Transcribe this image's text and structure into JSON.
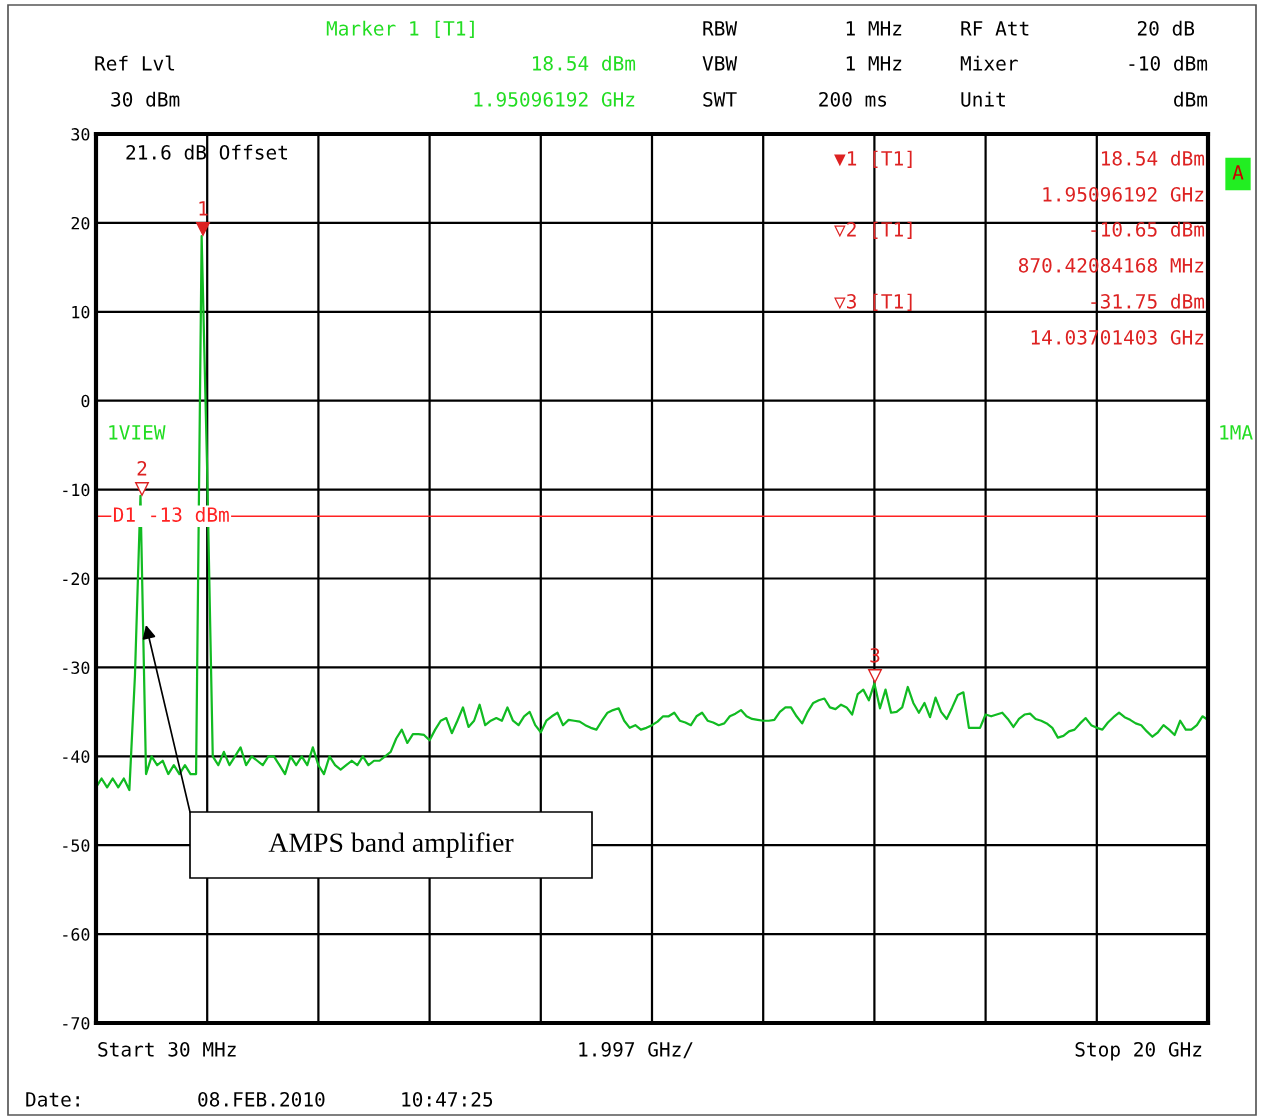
{
  "chart_data": {
    "type": "line",
    "categories": [
      null,
      null,
      null,
      null,
      null,
      null,
      null,
      null,
      null,
      null,
      null,
      null,
      null,
      null,
      null,
      null,
      null,
      null,
      null,
      null,
      null,
      null,
      null,
      null,
      null,
      null,
      null,
      null,
      null,
      null,
      null,
      null,
      null,
      null,
      null,
      null,
      null,
      null,
      null,
      null,
      null,
      null,
      null,
      null,
      null,
      null,
      null,
      null,
      null,
      null,
      null,
      null,
      null,
      null,
      null,
      null,
      null,
      null,
      null,
      null,
      null,
      null,
      null,
      null,
      null,
      null,
      null,
      null,
      null,
      null,
      null,
      null,
      null,
      null,
      null,
      null,
      null,
      null,
      null,
      null,
      null,
      null,
      null,
      null,
      null,
      null,
      null,
      null,
      null,
      null,
      null,
      null,
      null,
      null,
      null,
      null,
      null,
      null,
      null,
      null,
      null,
      null,
      null,
      null,
      null,
      null,
      null,
      null,
      null,
      null,
      null,
      null,
      null,
      null,
      null,
      null,
      null,
      null,
      null,
      null,
      null,
      null,
      null,
      null,
      null,
      null,
      null,
      null,
      null,
      null,
      null,
      null,
      null,
      null,
      null,
      null,
      null,
      null,
      null,
      null,
      null,
      null,
      null,
      null,
      null,
      null,
      null,
      null,
      null,
      null,
      null,
      null,
      null,
      null,
      null,
      null,
      null,
      null,
      null,
      null,
      null,
      null,
      null,
      null,
      null,
      null,
      null,
      null,
      null,
      null,
      null,
      null,
      null,
      null,
      null,
      null,
      null,
      null,
      null,
      null,
      null,
      null,
      null,
      null,
      null,
      null,
      null,
      null,
      null,
      null,
      null,
      null,
      null,
      null,
      null,
      null,
      null,
      null,
      null,
      null,
      null
    ],
    "series": [
      {
        "color": "#11bb22",
        "values": [
          -43.5,
          -42.5,
          -43.5,
          -42.5,
          -43.5,
          -42.5,
          -43.8,
          -31,
          -10.7,
          -42,
          -40,
          -41,
          -40.5,
          -42,
          -41,
          -42,
          -41,
          -42,
          -42,
          18.5,
          -8,
          -40,
          -41,
          -39.5,
          -41,
          -40,
          -39,
          -41,
          -40,
          -40.5,
          -41,
          -40,
          -40,
          -41,
          -42,
          -40,
          -41,
          -40,
          -41,
          -39,
          -41,
          -42,
          -40,
          -41,
          -41.5,
          -41,
          -40.5,
          -41,
          -40,
          -41,
          -40.5,
          -40.5,
          -40,
          -39.5,
          -38,
          -37,
          -38.5,
          -37.5,
          -37.5,
          -37.6,
          -38.2,
          -37,
          -36,
          -35.7,
          -37.4,
          -36,
          -34.5,
          -36.7,
          -36,
          -34.2,
          -36.5,
          -36,
          -35.7,
          -36,
          -34.5,
          -36,
          -36.5,
          -35.5,
          -35,
          -36.5,
          -37.3,
          -36,
          -35.5,
          -35.1,
          -36.5,
          -35.9,
          -36,
          -36.1,
          -36.5,
          -36.8,
          -37,
          -36,
          -35.1,
          -34.8,
          -34.6,
          -36,
          -36.8,
          -36.5,
          -37,
          -36.8,
          -36.5,
          -36.1,
          -35.5,
          -35.5,
          -35.1,
          -36,
          -36.2,
          -36.5,
          -35.5,
          -35.1,
          -36,
          -36.2,
          -36.5,
          -36.3,
          -35.5,
          -35.2,
          -34.8,
          -35.5,
          -35.8,
          -35.9,
          -36,
          -36,
          -35.9,
          -35,
          -34.5,
          -34.5,
          -35.5,
          -36.3,
          -35,
          -34,
          -33.7,
          -33.5,
          -34.5,
          -34.7,
          -34.2,
          -34.5,
          -35.3,
          -33,
          -32.5,
          -33.7,
          -31.8,
          -34.6,
          -32.5,
          -35.1,
          -35,
          -34.5,
          -32.2,
          -34,
          -35.1,
          -34,
          -35.6,
          -33.4,
          -35,
          -35.8,
          -34.5,
          -33.1,
          -32.8,
          -36.8,
          -36.8,
          -36.8,
          -35.3,
          -35.5,
          -35.3,
          -35.1,
          -35.8,
          -36.7,
          -35.8,
          -35.3,
          -35.2,
          -35.8,
          -36,
          -36.3,
          -36.8,
          -37.9,
          -37.7,
          -37.2,
          -37,
          -36.3,
          -35.7,
          -36.5,
          -36.8,
          -37,
          -36.2,
          -35.6,
          -35.1,
          -35.6,
          -35.9,
          -36.3,
          -36.5,
          -37.2,
          -37.8,
          -37.3,
          -36.5,
          -37,
          -37.6,
          -36,
          -37,
          -37,
          -36.5,
          -35.5,
          -35.9
        ]
      }
    ],
    "ylim": [
      -70,
      30
    ],
    "yticks": [
      -70,
      -60,
      -50,
      -40,
      -30,
      -20,
      -10,
      0,
      10,
      20,
      30
    ],
    "grid": true,
    "legend": false,
    "ref_lines": [
      {
        "axis": "y",
        "value": -13,
        "label": "D1 -13 dBm",
        "color": "#ff2222"
      }
    ],
    "annotations": [
      "Marker 1 [T1]",
      "Ref Lvl",
      "18.54 dBm",
      "30 dBm",
      "1.95096192 GHz",
      "RBW",
      "1 MHz",
      "VBW",
      "1 MHz",
      "SWT",
      "200 ms",
      "RF Att",
      "20 dB",
      "Mixer",
      "-10 dBm",
      "Unit",
      "dBm",
      "21.6 dB Offset",
      "1VIEW",
      "1MA",
      "▼1 [T1]",
      "18.54 dBm",
      "1.95096192 GHz",
      "▽2 [T1]",
      "-10.65 dBm",
      "870.42084168 MHz",
      "▽3 [T1]",
      "-31.75 dBm",
      "14.03701403 GHz",
      "A",
      "Date:",
      "08.FEB.2010",
      "10:47:25",
      "Start 30 MHz",
      "1.997 GHz/",
      "Stop 20 GHz",
      "AMPS band amplifier",
      "1",
      "2",
      "3"
    ]
  }
}
